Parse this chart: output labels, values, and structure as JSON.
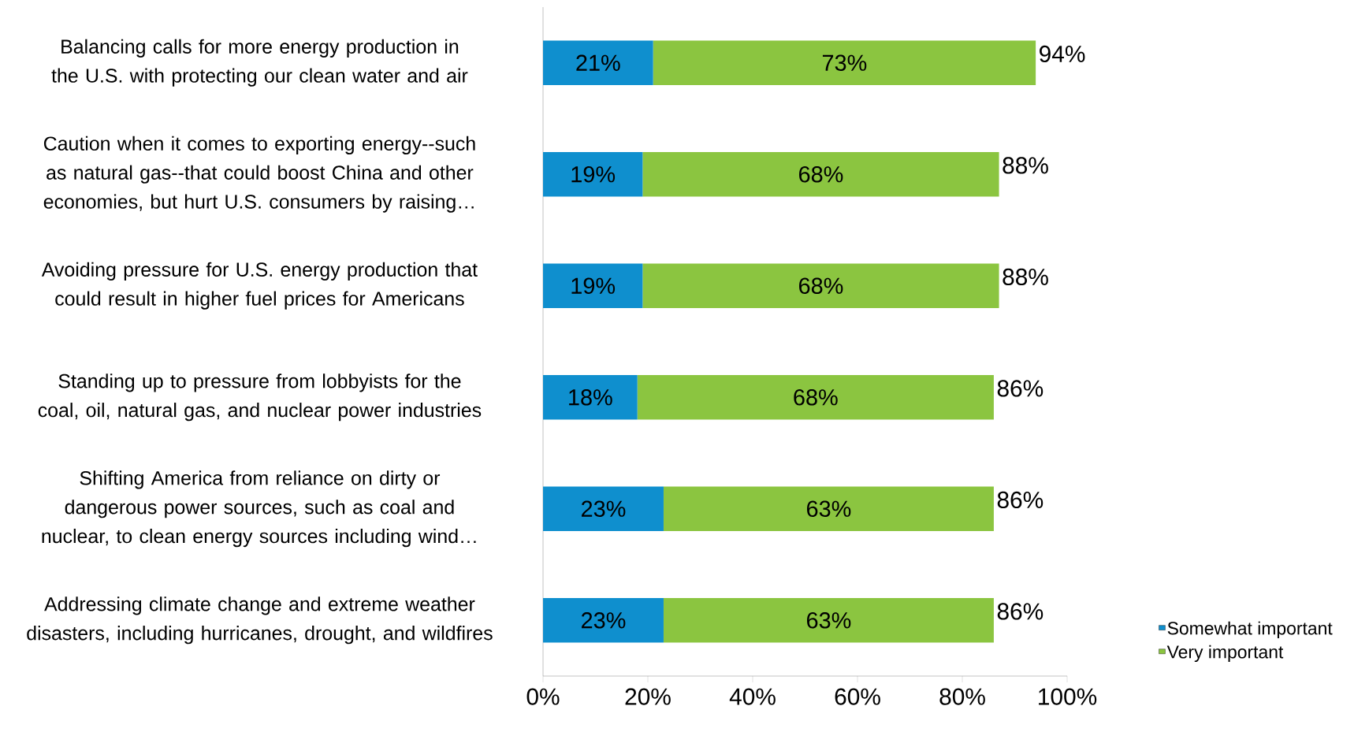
{
  "chart_data": {
    "type": "bar",
    "orientation": "horizontal",
    "stacked": true,
    "categories": [
      "Balancing calls for more energy production in the U.S. with protecting our clean water and air",
      "Caution when it comes to exporting energy--such as natural gas--that could boost China and other economies, but hurt U.S. consumers by raising…",
      "Avoiding pressure for U.S. energy production that could result in higher fuel prices for Americans",
      "Standing up to pressure from lobbyists for the coal, oil, natural gas, and nuclear power industries",
      "Shifting America from reliance on dirty or dangerous power sources, such as coal and nuclear, to clean energy sources including wind…",
      "Addressing climate change and extreme weather disasters, including hurricanes, drought, and wildfires"
    ],
    "series": [
      {
        "name": "Somewhat important",
        "color": "#0f8fce",
        "values": [
          21,
          19,
          19,
          18,
          23,
          23
        ],
        "value_labels": [
          "21%",
          "19%",
          "19%",
          "18%",
          "23%",
          "23%"
        ]
      },
      {
        "name": "Very important",
        "color": "#8bc540",
        "values": [
          73,
          68,
          68,
          68,
          63,
          63
        ],
        "value_labels": [
          "73%",
          "68%",
          "68%",
          "68%",
          "63%",
          "63%"
        ]
      }
    ],
    "totals": [
      "94%",
      "88%",
      "88%",
      "86%",
      "86%",
      "86%"
    ],
    "xlim": [
      0,
      100
    ],
    "xticks": [
      {
        "value": 0,
        "label": "0%"
      },
      {
        "value": 20,
        "label": "20%"
      },
      {
        "value": 40,
        "label": "40%"
      },
      {
        "value": 60,
        "label": "60%"
      },
      {
        "value": 80,
        "label": "80%"
      },
      {
        "value": 100,
        "label": "100%"
      }
    ],
    "legend": "bottom right"
  }
}
